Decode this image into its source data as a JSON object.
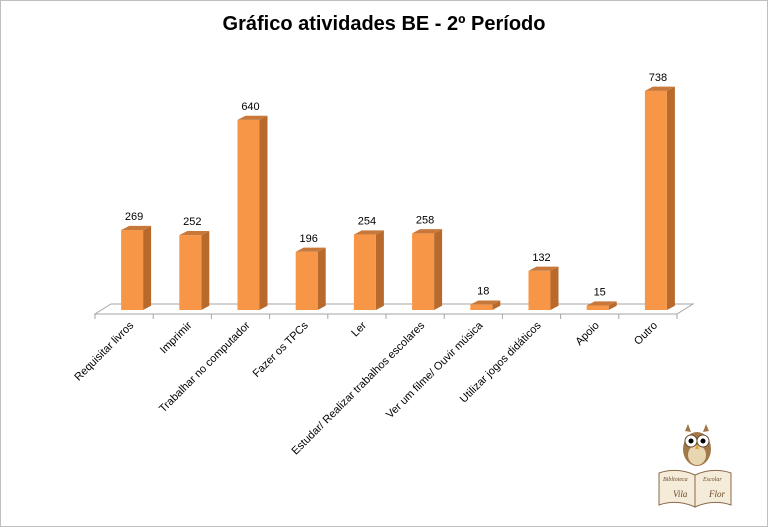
{
  "chart_data": {
    "type": "bar",
    "title": "Gráfico atividades BE - 2º Período",
    "categories": [
      "Requisitar livros",
      "Imprimir",
      "Trabalhar no computador",
      "Fazer os TPCs",
      "Ler",
      "Estudar/ Realizar trabalhos escolares",
      "Ver um filme/ Ouvir música",
      "Utilizar jogos didáticos",
      "Apoio",
      "Outro"
    ],
    "values": [
      269,
      252,
      640,
      196,
      254,
      258,
      18,
      132,
      15,
      738
    ],
    "ylim": [
      0,
      800
    ],
    "grid": false,
    "legend": "none",
    "bar_color": "#f79646",
    "bar_side_color": "#b86a2c",
    "bar_top_color": "#c8783a"
  },
  "logo": {
    "name": "biblioteca-escolar-vila-flor-logo",
    "text": [
      "Biblioteca",
      "Escolar",
      "Vila",
      "Flor"
    ]
  }
}
